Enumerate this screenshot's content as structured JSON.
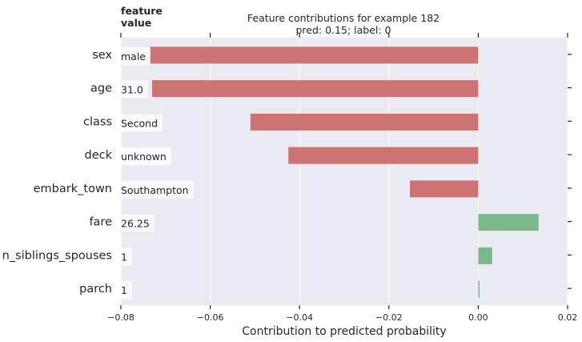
{
  "chart_data": {
    "type": "bar",
    "orientation": "horizontal",
    "title": "Feature contributions for example 182",
    "subtitle": "pred: 0.15; label: 0",
    "xlabel": "Contribution to predicted probability",
    "ylabel": "",
    "xlim": [
      -0.08,
      0.02
    ],
    "x_ticks": [
      -0.08,
      -0.06,
      -0.04,
      -0.02,
      0.0,
      0.02
    ],
    "x_tick_labels": [
      "−0.08",
      "−0.06",
      "−0.04",
      "−0.02",
      "0.00",
      "0.02"
    ],
    "feature_value_header": [
      "feature",
      "value"
    ],
    "categories": [
      "sex",
      "age",
      "class",
      "deck",
      "embark_town",
      "fare",
      "n_siblings_spouses",
      "parch"
    ],
    "feature_values": [
      "male",
      "31.0",
      "Second",
      "unknown",
      "Southampton",
      "26.25",
      "1",
      "1"
    ],
    "values": [
      -0.0735,
      -0.073,
      -0.051,
      -0.0425,
      -0.0153,
      0.0135,
      0.0031,
      0.0003
    ],
    "colors": {
      "negative": "#cd7373",
      "positive": "#7bb98a",
      "background": "#eaeaf2",
      "grid": "#ffffff"
    },
    "grid": true
  }
}
